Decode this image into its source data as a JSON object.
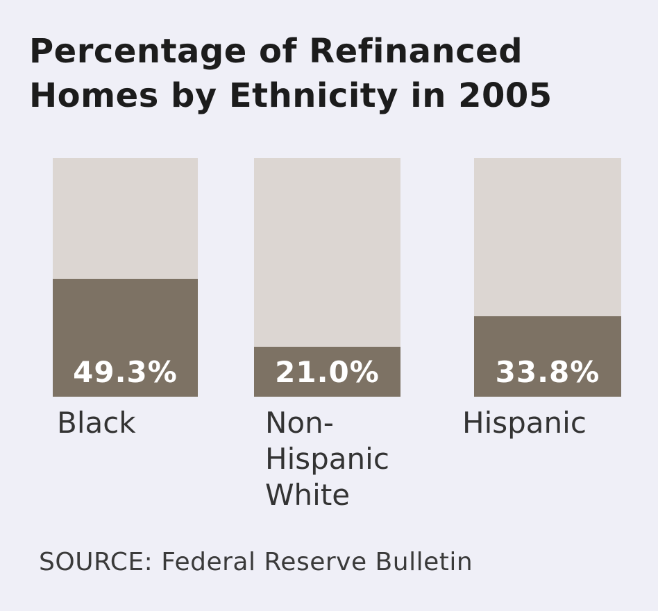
{
  "chart_data": {
    "type": "bar",
    "title_lines": [
      "Percentage of Refinanced",
      "Homes by Ethnicity in 2005"
    ],
    "categories": [
      "Black",
      "Non-\nHispanic\nWhite",
      "Hispanic"
    ],
    "values": [
      49.3,
      21.0,
      33.8
    ],
    "value_labels": [
      "49.3%",
      "21.0%",
      "33.8%"
    ],
    "ylim": [
      0,
      100
    ],
    "grid": false,
    "colors": {
      "background": "#efeff7",
      "track": "#dcd6d2",
      "fill": "#7d7264",
      "value_text": "#ffffff"
    }
  },
  "source": "SOURCE: Federal Reserve Bulletin"
}
